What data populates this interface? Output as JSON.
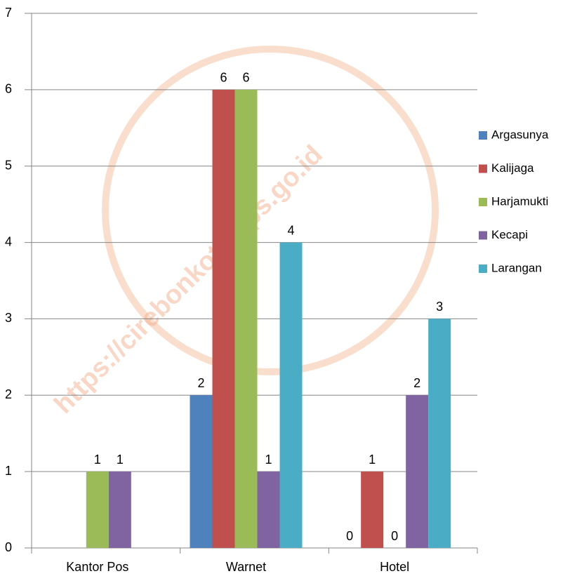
{
  "chart_data": {
    "type": "bar",
    "categories": [
      "Kantor Pos",
      "Warnet",
      "Hotel"
    ],
    "series": [
      {
        "name": "Argasunya",
        "color": "#4f81bd",
        "values": [
          null,
          2,
          0
        ]
      },
      {
        "name": "Kalijaga",
        "color": "#c0504d",
        "values": [
          null,
          6,
          1
        ]
      },
      {
        "name": "Harjamukti",
        "color": "#9bbb59",
        "values": [
          1,
          6,
          0
        ]
      },
      {
        "name": "Kecapi",
        "color": "#8064a2",
        "values": [
          1,
          1,
          2
        ]
      },
      {
        "name": "Larangan",
        "color": "#4bacc6",
        "values": [
          null,
          4,
          3
        ]
      }
    ],
    "ylim": [
      0,
      7
    ],
    "yticks": [
      0,
      1,
      2,
      3,
      4,
      5,
      6,
      7
    ],
    "grid": true,
    "legend": "right",
    "watermark": "https://cirebonkota.bps.go.id"
  }
}
